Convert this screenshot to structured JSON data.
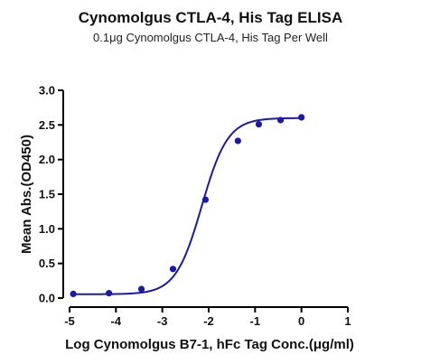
{
  "chart_data": {
    "type": "scatter",
    "title": "Cynomolgus CTLA-4, His Tag ELISA",
    "subtitle": "0.1μg Cynomolgus CTLA-4, His Tag Per Well",
    "xlabel": "Log Cynomolgus B7-1, hFc Tag Conc.(μg/ml)",
    "ylabel": "Mean Abs.(OD450)",
    "xlim": [
      -5,
      1
    ],
    "ylim": [
      0,
      3
    ],
    "x_ticks": [
      "-5",
      "-4",
      "-3",
      "-2",
      "-1",
      "0",
      "1"
    ],
    "y_ticks": [
      "0.0",
      "0.5",
      "1.0",
      "1.5",
      "2.0",
      "2.5",
      "3.0"
    ],
    "grid": false,
    "colors": {
      "series": "#1a1aa6",
      "axis": "#000000"
    },
    "points": [
      {
        "x": -4.92,
        "y": 0.06
      },
      {
        "x": -4.15,
        "y": 0.07
      },
      {
        "x": -3.45,
        "y": 0.13
      },
      {
        "x": -2.77,
        "y": 0.42
      },
      {
        "x": -2.07,
        "y": 1.42
      },
      {
        "x": -1.37,
        "y": 2.27
      },
      {
        "x": -0.92,
        "y": 2.51
      },
      {
        "x": -0.45,
        "y": 2.57
      },
      {
        "x": 0.0,
        "y": 2.61
      }
    ],
    "fit": {
      "model": "4PL",
      "bottom": 0.055,
      "top": 2.6,
      "log_ec50": -2.15,
      "hill": 1.55,
      "x_range": [
        -4.92,
        0.0
      ]
    }
  }
}
